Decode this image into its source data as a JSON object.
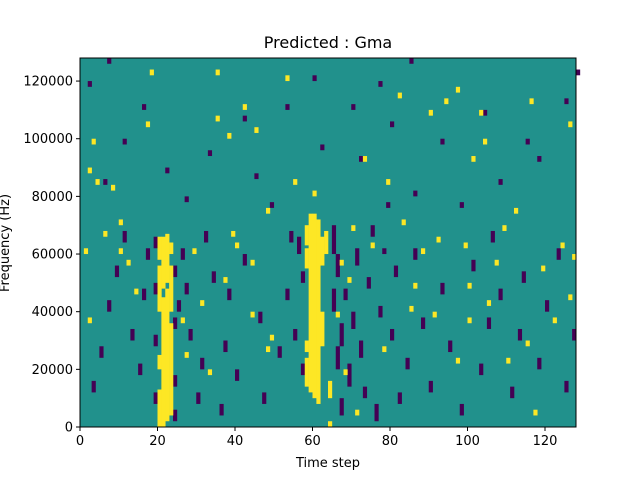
{
  "chart_data": {
    "type": "heatmap",
    "title": "Predicted : Gma",
    "xlabel": "Time step",
    "ylabel": "Frequency (Hz)",
    "xlim": [
      0,
      128
    ],
    "ylim": [
      0,
      128000
    ],
    "x_ticks": [
      0,
      20,
      40,
      60,
      80,
      100,
      120
    ],
    "y_ticks": [
      0,
      20000,
      40000,
      60000,
      80000,
      100000,
      120000
    ],
    "x_tick_labels": [
      "0",
      "20",
      "40",
      "60",
      "80",
      "100",
      "120"
    ],
    "y_tick_labels": [
      "0",
      "20000",
      "40000",
      "60000",
      "80000",
      "100000",
      "120000"
    ],
    "n_time_steps": 128,
    "n_freq_bins": 128,
    "freq_bin_hz": 1000,
    "values_legend": {
      "background": 0.5,
      "high": 1,
      "low": 0
    },
    "colors": {
      "background": "#21918c",
      "high": "#fde725",
      "low": "#440154",
      "frame": "#000000"
    },
    "high_cells": [
      [
        20,
        0,
        13
      ],
      [
        20,
        20,
        25
      ],
      [
        20,
        40,
        56
      ],
      [
        20,
        58,
        66
      ],
      [
        21,
        0,
        45
      ],
      [
        21,
        48,
        66
      ],
      [
        22,
        2,
        48
      ],
      [
        22,
        50,
        67
      ],
      [
        23,
        4,
        36
      ],
      [
        23,
        40,
        56
      ],
      [
        23,
        60,
        64
      ],
      [
        58,
        14,
        24
      ],
      [
        58,
        26,
        30
      ],
      [
        58,
        55,
        62
      ],
      [
        58,
        63,
        70
      ],
      [
        59,
        12,
        74
      ],
      [
        60,
        10,
        74
      ],
      [
        61,
        8,
        72
      ],
      [
        62,
        28,
        40
      ],
      [
        62,
        56,
        66
      ],
      [
        63,
        60,
        68
      ],
      [
        64,
        0,
        2
      ],
      [
        64,
        10,
        16
      ],
      [
        1,
        60,
        62
      ],
      [
        2,
        36,
        38
      ],
      [
        2,
        88,
        90
      ],
      [
        3,
        98,
        100
      ],
      [
        4,
        84,
        86
      ],
      [
        6,
        66,
        68
      ],
      [
        8,
        82,
        84
      ],
      [
        10,
        60,
        62
      ],
      [
        14,
        46,
        48
      ],
      [
        17,
        104,
        106
      ],
      [
        18,
        122,
        124
      ],
      [
        26,
        36,
        38
      ],
      [
        27,
        24,
        26
      ],
      [
        29,
        60,
        62
      ],
      [
        31,
        42,
        44
      ],
      [
        33,
        18,
        20
      ],
      [
        35,
        122,
        124
      ],
      [
        35,
        106,
        108
      ],
      [
        38,
        100,
        102
      ],
      [
        39,
        66,
        68
      ],
      [
        40,
        62,
        64
      ],
      [
        42,
        110,
        112
      ],
      [
        44,
        38,
        40
      ],
      [
        45,
        102,
        104
      ],
      [
        48,
        74,
        76
      ],
      [
        49,
        30,
        32
      ],
      [
        53,
        120,
        122
      ],
      [
        55,
        84,
        86
      ],
      [
        60,
        80,
        82
      ],
      [
        67,
        56,
        58
      ],
      [
        68,
        18,
        20
      ],
      [
        69,
        50,
        52
      ],
      [
        70,
        68,
        70
      ],
      [
        71,
        4,
        6
      ],
      [
        73,
        92,
        94
      ],
      [
        75,
        62,
        64
      ],
      [
        78,
        26,
        28
      ],
      [
        79,
        84,
        86
      ],
      [
        82,
        114,
        116
      ],
      [
        83,
        70,
        72
      ],
      [
        86,
        48,
        50
      ],
      [
        88,
        60,
        62
      ],
      [
        90,
        108,
        110
      ],
      [
        91,
        38,
        40
      ],
      [
        92,
        64,
        66
      ],
      [
        97,
        22,
        24
      ],
      [
        99,
        62,
        64
      ],
      [
        100,
        48,
        50
      ],
      [
        100,
        36,
        38
      ],
      [
        101,
        92,
        94
      ],
      [
        103,
        108,
        110
      ],
      [
        104,
        98,
        100
      ],
      [
        105,
        42,
        44
      ],
      [
        107,
        56,
        58
      ],
      [
        109,
        68,
        70
      ],
      [
        110,
        22,
        24
      ],
      [
        112,
        74,
        76
      ],
      [
        115,
        28,
        30
      ],
      [
        117,
        4,
        6
      ],
      [
        119,
        54,
        56
      ],
      [
        122,
        36,
        38
      ],
      [
        124,
        62,
        64
      ],
      [
        126,
        44,
        46
      ],
      [
        127,
        58,
        60
      ],
      [
        126,
        104,
        106
      ],
      [
        116,
        112,
        114
      ],
      [
        94,
        112,
        114
      ],
      [
        97,
        116,
        118
      ],
      [
        10,
        70,
        72
      ],
      [
        12,
        56,
        58
      ],
      [
        44,
        56,
        58
      ],
      [
        48,
        26,
        28
      ],
      [
        37,
        50,
        52
      ],
      [
        66,
        38,
        40
      ],
      [
        85,
        40,
        42
      ]
    ],
    "low_cells": [
      [
        24,
        2,
        6
      ],
      [
        24,
        14,
        18
      ],
      [
        24,
        34,
        38
      ],
      [
        24,
        52,
        56
      ],
      [
        19,
        8,
        12
      ],
      [
        19,
        28,
        32
      ],
      [
        19,
        46,
        50
      ],
      [
        19,
        62,
        66
      ],
      [
        25,
        40,
        44
      ],
      [
        26,
        58,
        62
      ],
      [
        27,
        46,
        50
      ],
      [
        28,
        30,
        34
      ],
      [
        30,
        8,
        12
      ],
      [
        31,
        20,
        24
      ],
      [
        32,
        64,
        68
      ],
      [
        34,
        50,
        54
      ],
      [
        36,
        4,
        8
      ],
      [
        37,
        26,
        30
      ],
      [
        38,
        44,
        48
      ],
      [
        40,
        16,
        20
      ],
      [
        42,
        56,
        60
      ],
      [
        46,
        36,
        40
      ],
      [
        47,
        8,
        12
      ],
      [
        51,
        24,
        28
      ],
      [
        53,
        44,
        48
      ],
      [
        55,
        30,
        34
      ],
      [
        56,
        60,
        66
      ],
      [
        57,
        18,
        22
      ],
      [
        57,
        50,
        54
      ],
      [
        65,
        40,
        48
      ],
      [
        65,
        60,
        70
      ],
      [
        66,
        20,
        28
      ],
      [
        66,
        52,
        60
      ],
      [
        67,
        28,
        36
      ],
      [
        67,
        4,
        10
      ],
      [
        68,
        44,
        48
      ],
      [
        69,
        14,
        22
      ],
      [
        70,
        34,
        40
      ],
      [
        71,
        56,
        62
      ],
      [
        72,
        24,
        30
      ],
      [
        73,
        10,
        14
      ],
      [
        74,
        48,
        52
      ],
      [
        75,
        66,
        70
      ],
      [
        76,
        2,
        8
      ],
      [
        77,
        38,
        42
      ],
      [
        78,
        60,
        62
      ],
      [
        79,
        76,
        78
      ],
      [
        80,
        30,
        34
      ],
      [
        81,
        52,
        56
      ],
      [
        82,
        8,
        12
      ],
      [
        84,
        20,
        24
      ],
      [
        86,
        58,
        62
      ],
      [
        88,
        34,
        38
      ],
      [
        90,
        12,
        16
      ],
      [
        93,
        46,
        50
      ],
      [
        95,
        26,
        30
      ],
      [
        98,
        4,
        8
      ],
      [
        101,
        54,
        58
      ],
      [
        103,
        18,
        22
      ],
      [
        105,
        34,
        38
      ],
      [
        106,
        64,
        68
      ],
      [
        108,
        44,
        48
      ],
      [
        111,
        10,
        14
      ],
      [
        113,
        30,
        34
      ],
      [
        114,
        50,
        54
      ],
      [
        118,
        20,
        24
      ],
      [
        120,
        40,
        44
      ],
      [
        123,
        58,
        62
      ],
      [
        125,
        12,
        16
      ],
      [
        127,
        30,
        34
      ],
      [
        3,
        12,
        16
      ],
      [
        5,
        24,
        28
      ],
      [
        7,
        40,
        44
      ],
      [
        9,
        52,
        56
      ],
      [
        11,
        64,
        68
      ],
      [
        13,
        30,
        34
      ],
      [
        15,
        18,
        22
      ],
      [
        16,
        44,
        48
      ],
      [
        17,
        58,
        62
      ],
      [
        2,
        118,
        120
      ],
      [
        7,
        126,
        128
      ],
      [
        11,
        98,
        100
      ],
      [
        16,
        110,
        112
      ],
      [
        33,
        94,
        96
      ],
      [
        42,
        106,
        108
      ],
      [
        53,
        110,
        112
      ],
      [
        60,
        120,
        122
      ],
      [
        70,
        110,
        112
      ],
      [
        80,
        104,
        106
      ],
      [
        93,
        98,
        100
      ],
      [
        104,
        108,
        110
      ],
      [
        115,
        98,
        100
      ],
      [
        125,
        112,
        114
      ],
      [
        128,
        122,
        124
      ],
      [
        45,
        86,
        88
      ],
      [
        72,
        92,
        94
      ],
      [
        86,
        80,
        82
      ],
      [
        98,
        76,
        78
      ],
      [
        108,
        84,
        86
      ],
      [
        118,
        92,
        94
      ],
      [
        6,
        84,
        86
      ],
      [
        22,
        88,
        90
      ],
      [
        27,
        78,
        80
      ],
      [
        49,
        76,
        78
      ],
      [
        54,
        64,
        68
      ],
      [
        62,
        96,
        98
      ],
      [
        77,
        118,
        120
      ],
      [
        85,
        126,
        128
      ]
    ]
  }
}
